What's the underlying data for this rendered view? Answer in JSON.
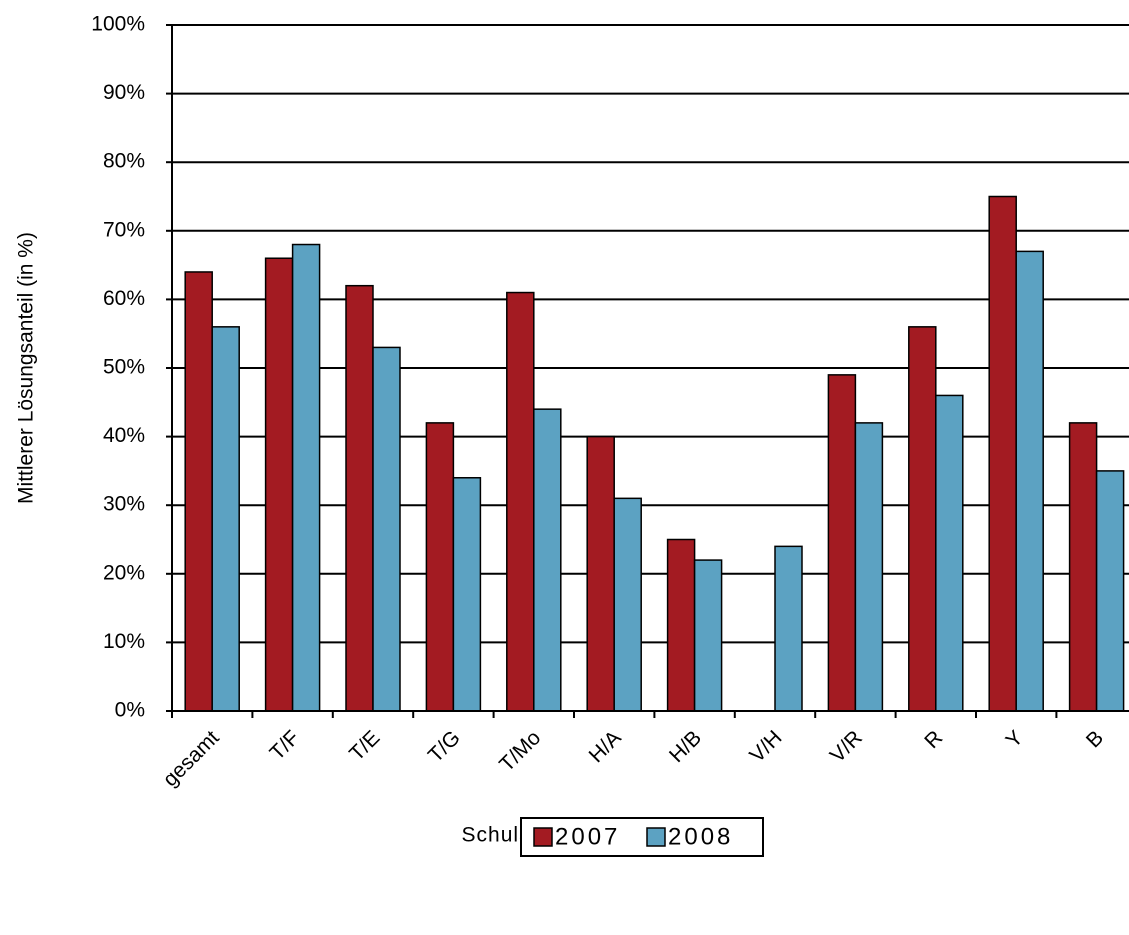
{
  "chart_data": {
    "type": "bar",
    "x_label": "Schulart/Kursniveau",
    "y_label": "Mittlerer Lösungsanteil (in %)",
    "categories": [
      "gesamt",
      "T/F",
      "T/E",
      "T/G",
      "T/Mo",
      "H/A",
      "H/B",
      "V/H",
      "V/R",
      "R",
      "Y",
      "B"
    ],
    "series": [
      {
        "name": "2007",
        "color": "#a31b22",
        "values": [
          64,
          66,
          62,
          42,
          61,
          40,
          25,
          null,
          49,
          56,
          75,
          42
        ]
      },
      {
        "name": "2008",
        "color": "#5ca2c2",
        "values": [
          56,
          68,
          53,
          34,
          44,
          31,
          22,
          24,
          42,
          46,
          67,
          35
        ]
      }
    ],
    "ylim": [
      0,
      100
    ],
    "yticks": [
      {
        "value": 0,
        "label": "0%"
      },
      {
        "value": 10,
        "label": "10%"
      },
      {
        "value": 20,
        "label": "20%"
      },
      {
        "value": 30,
        "label": "30%"
      },
      {
        "value": 40,
        "label": "40%"
      },
      {
        "value": 50,
        "label": "50%"
      },
      {
        "value": 60,
        "label": "60%"
      },
      {
        "value": 70,
        "label": "70%"
      },
      {
        "value": 80,
        "label": "80%"
      },
      {
        "value": 90,
        "label": "90%"
      },
      {
        "value": 100,
        "label": "100%"
      }
    ],
    "grid": true,
    "legend": "bottom"
  }
}
